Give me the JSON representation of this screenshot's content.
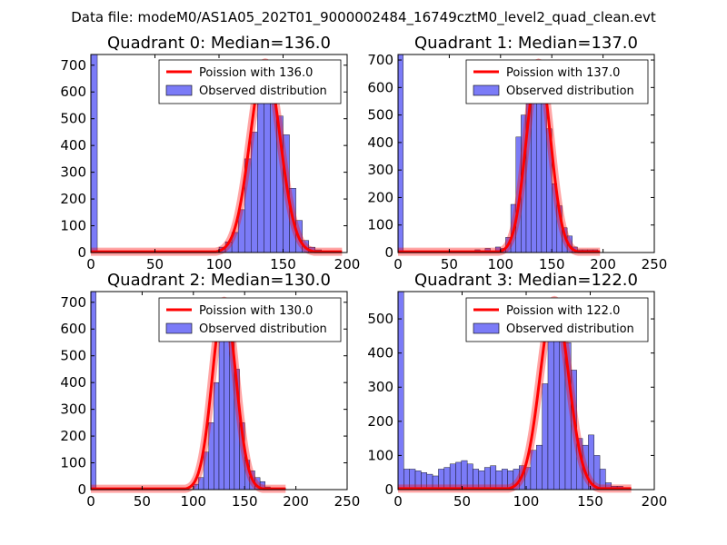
{
  "figure": {
    "suptitle": "Data file: modeM0/AS1A05_202T01_9000002484_16749cztM0_level2_quad_clean.evt"
  },
  "chart_data": [
    {
      "type": "bar",
      "title": "Quadrant 0: Median=136.0",
      "xlim": [
        0,
        200
      ],
      "ylim": [
        0,
        740
      ],
      "xticks": [
        0,
        50,
        100,
        150,
        200
      ],
      "yticks": [
        0,
        100,
        200,
        300,
        400,
        500,
        600,
        700
      ],
      "legend": {
        "placement": "top-right",
        "line_label": "Poission with 136.0",
        "bar_label": "Observed distribution"
      },
      "poisson_mean": 136.0,
      "poisson_peak": 710,
      "bin_width": 5,
      "bins": [
        [
          0,
          740
        ],
        [
          75,
          5
        ],
        [
          95,
          5
        ],
        [
          100,
          20
        ],
        [
          105,
          40
        ],
        [
          110,
          75
        ],
        [
          115,
          160
        ],
        [
          120,
          350
        ],
        [
          125,
          450
        ],
        [
          130,
          570
        ],
        [
          135,
          560
        ],
        [
          140,
          560
        ],
        [
          145,
          510
        ],
        [
          150,
          440
        ],
        [
          155,
          240
        ],
        [
          160,
          120
        ],
        [
          165,
          45
        ],
        [
          170,
          20
        ],
        [
          175,
          10
        ],
        [
          180,
          5
        ],
        [
          185,
          3
        ]
      ]
    },
    {
      "type": "bar",
      "title": "Quadrant 1: Median=137.0",
      "xlim": [
        0,
        250
      ],
      "ylim": [
        0,
        720
      ],
      "xticks": [
        0,
        50,
        100,
        150,
        200,
        250
      ],
      "yticks": [
        0,
        100,
        200,
        300,
        400,
        500,
        600,
        700
      ],
      "legend": {
        "placement": "top-right",
        "line_label": "Poission with 137.0",
        "bar_label": "Observed distribution"
      },
      "poisson_mean": 137.0,
      "poisson_peak": 690,
      "bin_width": 5,
      "bins": [
        [
          0,
          720
        ],
        [
          75,
          10
        ],
        [
          85,
          15
        ],
        [
          95,
          20
        ],
        [
          100,
          15
        ],
        [
          105,
          55
        ],
        [
          110,
          175
        ],
        [
          115,
          420
        ],
        [
          120,
          500
        ],
        [
          125,
          600
        ],
        [
          130,
          610
        ],
        [
          135,
          600
        ],
        [
          140,
          560
        ],
        [
          145,
          450
        ],
        [
          150,
          250
        ],
        [
          155,
          170
        ],
        [
          160,
          90
        ],
        [
          165,
          60
        ],
        [
          170,
          20
        ],
        [
          175,
          10
        ],
        [
          180,
          10
        ],
        [
          185,
          10
        ],
        [
          190,
          10
        ]
      ]
    },
    {
      "type": "bar",
      "title": "Quadrant 2: Median=130.0",
      "xlim": [
        0,
        250
      ],
      "ylim": [
        0,
        740
      ],
      "xticks": [
        0,
        50,
        100,
        150,
        200,
        250
      ],
      "yticks": [
        0,
        100,
        200,
        300,
        400,
        500,
        600,
        700
      ],
      "legend": {
        "placement": "top-right",
        "line_label": "Poission with 130.0",
        "bar_label": "Observed distribution"
      },
      "poisson_mean": 130.0,
      "poisson_peak": 705,
      "bin_width": 5,
      "bins": [
        [
          0,
          740
        ],
        [
          70,
          5
        ],
        [
          80,
          5
        ],
        [
          90,
          5
        ],
        [
          100,
          20
        ],
        [
          105,
          45
        ],
        [
          110,
          140
        ],
        [
          115,
          250
        ],
        [
          120,
          400
        ],
        [
          125,
          640
        ],
        [
          130,
          700
        ],
        [
          135,
          640
        ],
        [
          140,
          450
        ],
        [
          145,
          250
        ],
        [
          150,
          110
        ],
        [
          155,
          70
        ],
        [
          160,
          45
        ],
        [
          165,
          30
        ],
        [
          170,
          10
        ],
        [
          175,
          5
        ],
        [
          180,
          5
        ],
        [
          185,
          5
        ]
      ]
    },
    {
      "type": "bar",
      "title": "Quadrant 3: Median=122.0",
      "xlim": [
        0,
        200
      ],
      "ylim": [
        0,
        580
      ],
      "xticks": [
        0,
        50,
        100,
        150,
        200
      ],
      "yticks": [
        0,
        100,
        200,
        300,
        400,
        500
      ],
      "legend": {
        "placement": "top-right",
        "line_label": "Poission with 122.0",
        "bar_label": "Observed distribution"
      },
      "poisson_mean": 122.0,
      "poisson_peak": 555,
      "bin_width": 4.5,
      "bins": [
        [
          0,
          580
        ],
        [
          4.5,
          60
        ],
        [
          9,
          60
        ],
        [
          13.5,
          55
        ],
        [
          18,
          50
        ],
        [
          22.5,
          45
        ],
        [
          27,
          40
        ],
        [
          31.5,
          60
        ],
        [
          36,
          65
        ],
        [
          40.5,
          75
        ],
        [
          45,
          80
        ],
        [
          49.5,
          85
        ],
        [
          54,
          75
        ],
        [
          58.5,
          60
        ],
        [
          63,
          55
        ],
        [
          67.5,
          65
        ],
        [
          72,
          70
        ],
        [
          76.5,
          55
        ],
        [
          81,
          60
        ],
        [
          85.5,
          55
        ],
        [
          90,
          60
        ],
        [
          94.5,
          70
        ],
        [
          99,
          65
        ],
        [
          103.5,
          115
        ],
        [
          108,
          130
        ],
        [
          112.5,
          310
        ],
        [
          117,
          475
        ],
        [
          121.5,
          555
        ],
        [
          126,
          470
        ],
        [
          130.5,
          430
        ],
        [
          135,
          350
        ],
        [
          139.5,
          150
        ],
        [
          144,
          130
        ],
        [
          148.5,
          160
        ],
        [
          153,
          100
        ],
        [
          157.5,
          60
        ],
        [
          162,
          20
        ],
        [
          166.5,
          10
        ],
        [
          171,
          10
        ]
      ]
    }
  ]
}
